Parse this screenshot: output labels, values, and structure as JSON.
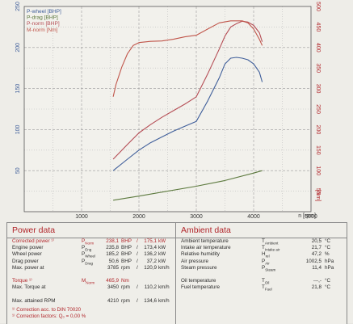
{
  "chart_data": {
    "type": "line",
    "x_axis": {
      "min": 0,
      "max": 5000,
      "ticks": [
        1000,
        2000,
        3000,
        4000,
        5000
      ],
      "tick_labels": [
        "1000",
        "2000",
        "3000",
        "4000",
        "5000"
      ],
      "label": "n [rpm]"
    },
    "left_axis": {
      "min": 0,
      "max": 250,
      "unit": "BHP",
      "ticks": [
        50,
        100,
        150,
        200,
        250
      ],
      "tick_labels": [
        "50",
        "100",
        "150",
        "200",
        "250"
      ]
    },
    "right_axis": {
      "min": 0,
      "max": 500,
      "unit": "Nm",
      "ticks": [
        50,
        100,
        150,
        200,
        250,
        300,
        350,
        400,
        450,
        500
      ],
      "tick_labels": [
        "50",
        "100",
        "150",
        "200",
        "250",
        "300",
        "350",
        "400",
        "450",
        "500"
      ]
    },
    "grid": true,
    "legend_position": "top-left",
    "series": [
      {
        "name": "P-wheel [BHP]",
        "color": "#3f5e9a",
        "axis": "left",
        "x": [
          1550,
          1800,
          2000,
          2200,
          2400,
          2600,
          2800,
          3000,
          3200,
          3400,
          3500,
          3600,
          3700,
          3800,
          3900,
          4000,
          4100,
          4150
        ],
        "y": [
          50,
          64,
          75,
          84,
          91,
          98,
          104,
          110,
          135,
          163,
          180,
          187,
          188,
          187,
          185,
          180,
          170,
          158
        ]
      },
      {
        "name": "P-drag [BHP]",
        "color": "#5d7a3f",
        "axis": "left",
        "x": [
          1550,
          2000,
          2500,
          3000,
          3500,
          4000,
          4150
        ],
        "y": [
          14,
          19,
          25,
          31,
          38,
          47,
          50
        ]
      },
      {
        "name": "P-norm [BHP]",
        "color": "#b54d55",
        "axis": "left",
        "x": [
          1550,
          1800,
          2000,
          2200,
          2400,
          2600,
          2800,
          3000,
          3200,
          3400,
          3500,
          3600,
          3700,
          3800,
          3900,
          4000,
          4100,
          4150
        ],
        "y": [
          64,
          82,
          96,
          106,
          115,
          123,
          131,
          140,
          168,
          198,
          214,
          225,
          229,
          232,
          231,
          227,
          218,
          207
        ]
      },
      {
        "name": "M-norm [Nm]",
        "color": "#c0554a",
        "axis": "right",
        "x": [
          1550,
          1600,
          1700,
          1800,
          1900,
          2000,
          2200,
          2400,
          2600,
          2800,
          3000,
          3200,
          3400,
          3600,
          3800,
          3900,
          4000,
          4100,
          4150
        ],
        "y": [
          280,
          310,
          352,
          385,
          405,
          412,
          415,
          416,
          420,
          426,
          430,
          445,
          460,
          465,
          465,
          460,
          445,
          420,
          405
        ]
      }
    ]
  },
  "power_data": {
    "title": "Power data",
    "rows": [
      {
        "label": "Corrected power ¹⁾",
        "sym": "P",
        "sub": "Norm",
        "v1": "238,1",
        "u1": "BHP",
        "v2": "175,1",
        "u2": "kW",
        "red": true
      },
      {
        "label": "Engine power",
        "sym": "P",
        "sub": "Eng",
        "v1": "235,8",
        "u1": "BHP",
        "v2": "173,4",
        "u2": "kW",
        "red": false
      },
      {
        "label": "Wheel power",
        "sym": "P",
        "sub": "Wheel",
        "v1": "185,2",
        "u1": "BHP",
        "v2": "136,2",
        "u2": "kW",
        "red": false
      },
      {
        "label": "Drag power",
        "sym": "P",
        "sub": "Drag",
        "v1": "50,6",
        "u1": "BHP",
        "v2": "37,2",
        "u2": "kW",
        "red": false
      },
      {
        "label": "Max. power at",
        "sym": "",
        "sub": "",
        "v1": "3785",
        "u1": "rpm",
        "v2": "120,9",
        "u2": "km/h",
        "red": false
      },
      {
        "label": "",
        "sym": "",
        "sub": "",
        "v1": "",
        "u1": "",
        "v2": "",
        "u2": "",
        "red": false
      },
      {
        "label": "Torque ¹⁾",
        "sym": "M",
        "sub": "Norm",
        "v1": "465,9",
        "u1": "Nm",
        "v2": "",
        "u2": "",
        "red": true
      },
      {
        "label": "Max. Torque at",
        "sym": "",
        "sub": "",
        "v1": "3450",
        "u1": "rpm",
        "v2": "110,2",
        "u2": "km/h",
        "red": false
      },
      {
        "label": "",
        "sym": "",
        "sub": "",
        "v1": "",
        "u1": "",
        "v2": "",
        "u2": "",
        "red": false
      },
      {
        "label": "Max. attained RPM",
        "sym": "",
        "sub": "",
        "v1": "4210",
        "u1": "rpm",
        "v2": "134,6",
        "u2": "km/h",
        "red": false
      }
    ],
    "notes": [
      "¹⁾ Correction acc. to DIN 70020",
      "¹⁾ Correction factors: Q₀ = 0,00 %"
    ]
  },
  "ambient_data": {
    "title": "Ambient data",
    "rows": [
      {
        "label": "Ambient temperature",
        "sym": "T",
        "sub": "Ambient",
        "val": "20,5",
        "unit": "°C"
      },
      {
        "label": "Intake air temperature",
        "sym": "T",
        "sub": "Intake air",
        "val": "21,7",
        "unit": "°C"
      },
      {
        "label": "Relative humidity",
        "sym": "H",
        "sub": "rel",
        "val": "47,2",
        "unit": "%"
      },
      {
        "label": "Air pressure",
        "sym": "P",
        "sub": "Air",
        "val": "1002,5",
        "unit": "hPa"
      },
      {
        "label": "Steam pressure",
        "sym": "P",
        "sub": "Steam",
        "val": "11,4",
        "unit": "hPa"
      },
      {
        "label": "",
        "sym": "",
        "sub": "",
        "val": "",
        "unit": ""
      },
      {
        "label": "Oil temperature",
        "sym": "T",
        "sub": "Oil",
        "val": "---,-",
        "unit": "°C"
      },
      {
        "label": "Fuel temperature",
        "sym": "T",
        "sub": "Fuel",
        "val": "21,8",
        "unit": "°C"
      }
    ]
  }
}
